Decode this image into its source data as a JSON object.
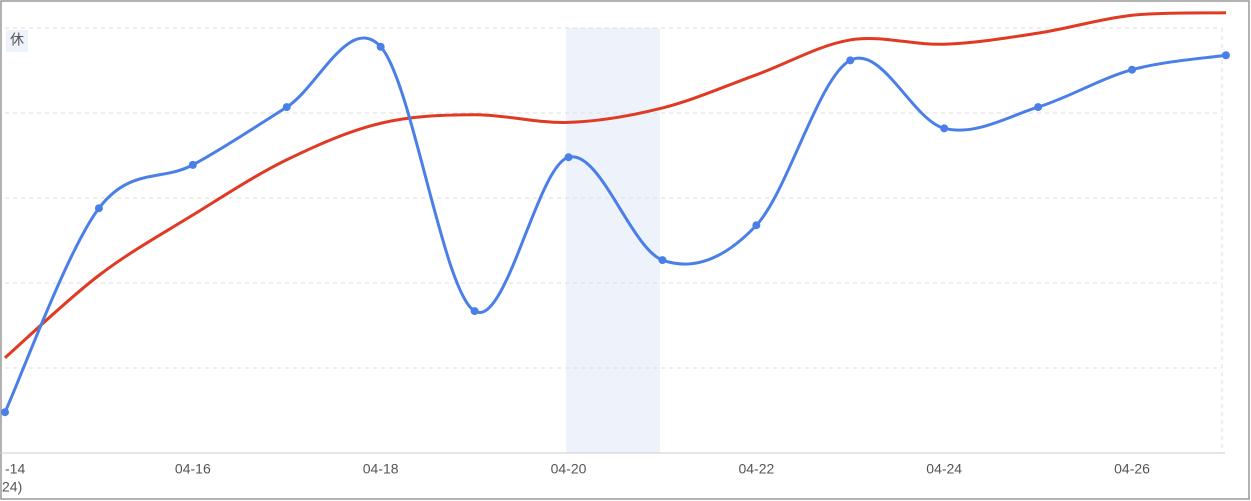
{
  "chart_data": {
    "type": "line",
    "corner_label": "休",
    "categories": [
      "-14",
      null,
      "04-16",
      null,
      "04-18",
      null,
      "04-20",
      null,
      "04-22",
      null,
      "04-24",
      null,
      "04-26",
      null
    ],
    "year_label": "24)",
    "series": [
      {
        "color": "#4a7fe8",
        "markers": true,
        "values": [
          0.48,
          2.88,
          3.39,
          4.07,
          4.78,
          1.67,
          3.48,
          2.27,
          2.68,
          4.62,
          3.82,
          4.07,
          4.51,
          4.68
        ]
      },
      {
        "color": "#e03a24",
        "markers": false,
        "values": [
          1.12,
          2.09,
          2.8,
          3.45,
          3.88,
          3.98,
          3.89,
          4.06,
          4.45,
          4.86,
          4.81,
          4.94,
          5.15,
          5.18
        ]
      }
    ],
    "ylim": [
      0,
      5.33
    ]
  }
}
